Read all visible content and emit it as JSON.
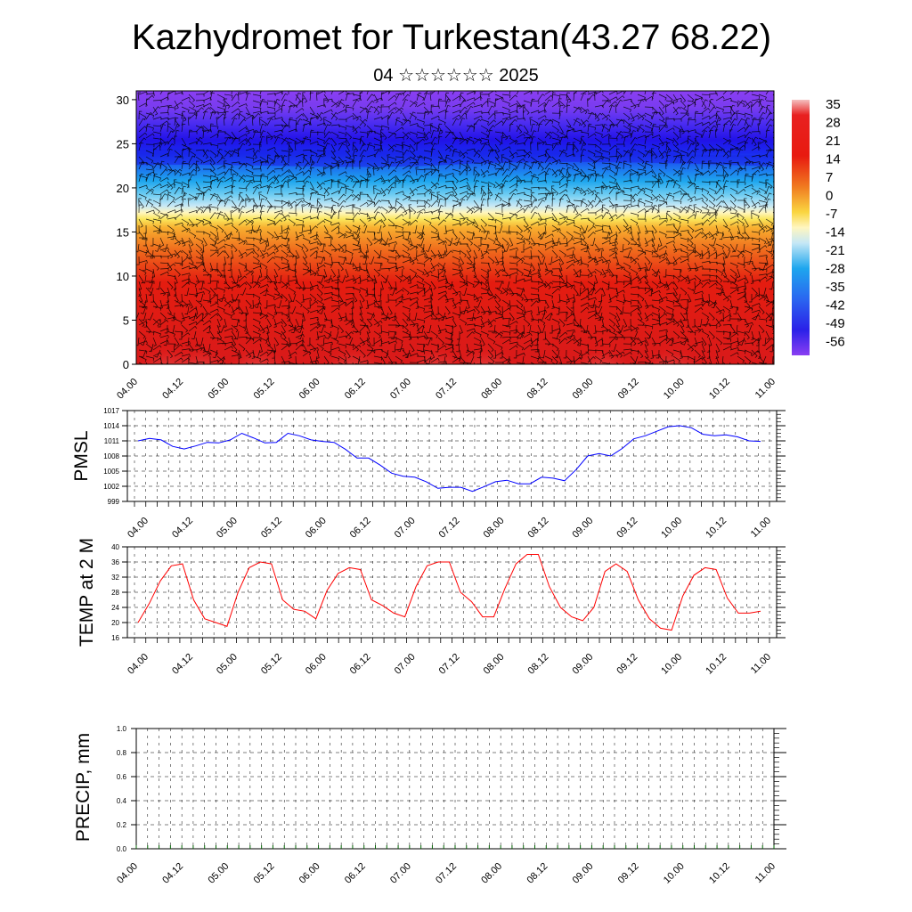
{
  "title": "Kazhydromet for Turkestan(43.27 68.22)",
  "subtitle": "04 ☆☆☆☆☆☆ 2025",
  "time_labels": [
    "04.00",
    "04.12",
    "05.00",
    "05.12",
    "06.00",
    "06.12",
    "07.00",
    "07.12",
    "08.00",
    "08.12",
    "09.00",
    "09.12",
    "10.00",
    "10.12",
    "11.00"
  ],
  "chart_data": [
    {
      "type": "heatmap",
      "name": "upper-air-temperature-section",
      "y_ticks": [
        0,
        5,
        10,
        15,
        20,
        25,
        30
      ],
      "ylim": [
        0,
        31
      ],
      "colorbar_labels": [
        "35",
        "28",
        "21",
        "14",
        "7",
        "0",
        "-7",
        "-14",
        "-21",
        "-28",
        "-35",
        "-42",
        "-49",
        "-56"
      ],
      "wind_barbs": true,
      "colors": {
        "hot": "#f2b0b0",
        "red": "#e01010",
        "orange": "#f39020",
        "yellow": "#f8e040",
        "light_blue": "#bfe6f6",
        "cyan": "#27b6ef",
        "blue": "#1a2cf0",
        "dark_blue": "#2814e6",
        "violet": "#8a3ef0"
      }
    },
    {
      "type": "line",
      "ylabel": "PMSL",
      "y_ticks": [
        999,
        1002,
        1005,
        1008,
        1011,
        1014,
        1017
      ],
      "ylim": [
        999,
        1017
      ],
      "grid": true,
      "color": "#0000ff",
      "values": [
        1011.0,
        1011.5,
        1011.2,
        1009.9,
        1009.4,
        1010.0,
        1010.7,
        1010.6,
        1011.2,
        1012.5,
        1011.6,
        1010.6,
        1010.7,
        1012.5,
        1012.0,
        1011.2,
        1010.9,
        1010.7,
        1009.3,
        1007.6,
        1007.6,
        1006.2,
        1004.6,
        1004.0,
        1003.8,
        1002.9,
        1001.6,
        1001.8,
        1001.8,
        1001.0,
        1001.9,
        1002.9,
        1003.2,
        1002.5,
        1002.5,
        1003.8,
        1003.6,
        1003.1,
        1005.3,
        1008.0,
        1008.5,
        1008.0,
        1009.5,
        1011.4,
        1012.0,
        1012.9,
        1013.8,
        1014.0,
        1013.6,
        1012.3,
        1012.0,
        1012.2,
        1011.8,
        1011.0,
        1010.9
      ]
    },
    {
      "type": "line",
      "ylabel": "TEMP at 2 M",
      "y_ticks": [
        16,
        20,
        24,
        28,
        32,
        36,
        40
      ],
      "ylim": [
        16,
        40
      ],
      "grid": true,
      "color": "#ff0000",
      "values": [
        20.0,
        25.0,
        31.0,
        35.0,
        35.5,
        26.0,
        21.0,
        20.0,
        19.0,
        28.0,
        34.5,
        36.0,
        35.5,
        26.0,
        23.5,
        23.0,
        21.0,
        28.5,
        33.0,
        34.5,
        34.0,
        26.0,
        24.5,
        22.5,
        21.5,
        29.5,
        35.0,
        36.0,
        36.0,
        28.0,
        25.5,
        21.5,
        21.5,
        29.0,
        35.5,
        38.0,
        38.0,
        29.5,
        24.0,
        21.5,
        20.5,
        24.0,
        33.5,
        35.5,
        33.5,
        26.0,
        21.0,
        18.5,
        18.0,
        27.0,
        32.5,
        34.5,
        34.0,
        26.5,
        22.5,
        22.5,
        23.0
      ]
    },
    {
      "type": "bar",
      "ylabel": "PRECIP, mm",
      "y_ticks": [
        "0.0",
        "0.2",
        "0.4",
        "0.6",
        "0.8",
        "1.0"
      ],
      "ylim": [
        0,
        1
      ],
      "grid": true,
      "values": []
    }
  ]
}
